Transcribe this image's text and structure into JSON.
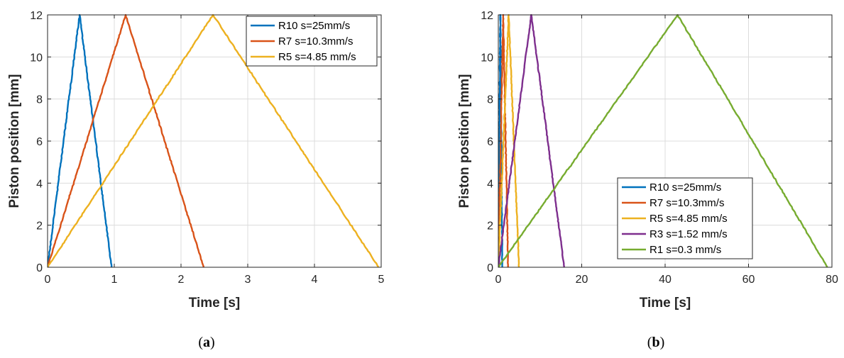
{
  "chart_data": [
    {
      "type": "line",
      "panel": "a",
      "xlabel": "Time [s]",
      "ylabel": "Piston position [mm]",
      "xlim": [
        0,
        5
      ],
      "ylim": [
        0,
        12
      ],
      "xticks": [
        0,
        1,
        2,
        3,
        4,
        5
      ],
      "yticks": [
        0,
        2,
        4,
        6,
        8,
        10,
        12
      ],
      "grid": true,
      "legend_position": "top-right",
      "series": [
        {
          "name": "R10 s=25mm/s",
          "color": "#0072BD",
          "x": [
            0,
            0.48,
            0.96
          ],
          "y": [
            0,
            12,
            0
          ]
        },
        {
          "name": "R7 s=10.3mm/s",
          "color": "#D95319",
          "x": [
            0,
            1.17,
            2.34
          ],
          "y": [
            0,
            12,
            0
          ]
        },
        {
          "name": "R5 s=4.85 mm/s",
          "color": "#EDB120",
          "x": [
            0,
            2.48,
            4.96
          ],
          "y": [
            0,
            12,
            0
          ]
        }
      ]
    },
    {
      "type": "line",
      "panel": "b",
      "xlabel": "Time [s]",
      "ylabel": "Piston position [mm]",
      "xlim": [
        0,
        80
      ],
      "ylim": [
        0,
        12
      ],
      "xticks": [
        0,
        20,
        40,
        60,
        80
      ],
      "yticks": [
        0,
        2,
        4,
        6,
        8,
        10,
        12
      ],
      "grid": true,
      "legend_position": "bottom-center",
      "series": [
        {
          "name": "R10 s=25mm/s",
          "color": "#0072BD",
          "x": [
            0,
            0.48,
            0.96
          ],
          "y": [
            0,
            12,
            0
          ]
        },
        {
          "name": "R7 s=10.3mm/s",
          "color": "#D95319",
          "x": [
            0,
            1.17,
            2.34
          ],
          "y": [
            0,
            12,
            0
          ]
        },
        {
          "name": "R5 s=4.85 mm/s",
          "color": "#EDB120",
          "x": [
            0,
            2.48,
            4.96
          ],
          "y": [
            0,
            12,
            0
          ]
        },
        {
          "name": "R3 s=1.52 mm/s",
          "color": "#7E2F8E",
          "x": [
            0,
            7.9,
            15.8
          ],
          "y": [
            0,
            12,
            0
          ]
        },
        {
          "name": "R1 s=0.3 mm/s",
          "color": "#77AC30",
          "x": [
            0,
            43.0,
            78.9
          ],
          "y": [
            0,
            12,
            0
          ]
        }
      ]
    }
  ],
  "captions": {
    "a": "a",
    "b": "b"
  }
}
